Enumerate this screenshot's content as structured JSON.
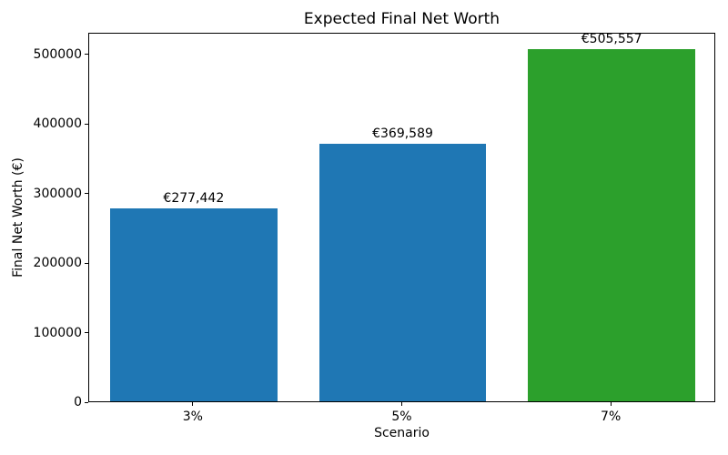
{
  "figure": {
    "background": "#ffffff"
  },
  "chart_data": {
    "type": "bar",
    "title": "Expected Final Net Worth",
    "xlabel": "Scenario",
    "ylabel": "Final Net Worth (€)",
    "categories": [
      "3%",
      "5%",
      "7%"
    ],
    "values": [
      277442,
      369589,
      505557
    ],
    "bar_labels": [
      "€277,442",
      "€369,589",
      "€505,557"
    ],
    "bar_colors": [
      "#1f77b4",
      "#1f77b4",
      "#2ca02c"
    ],
    "ylim": [
      0,
      530835
    ],
    "yticks": [
      0,
      100000,
      200000,
      300000,
      400000,
      500000
    ],
    "ytick_labels": [
      "0",
      "100000",
      "200000",
      "300000",
      "400000",
      "500000"
    ],
    "bar_width_fraction": 0.8,
    "grid": false,
    "legend_position": "none",
    "axis_color": "#000000",
    "text_color": "#000000"
  }
}
